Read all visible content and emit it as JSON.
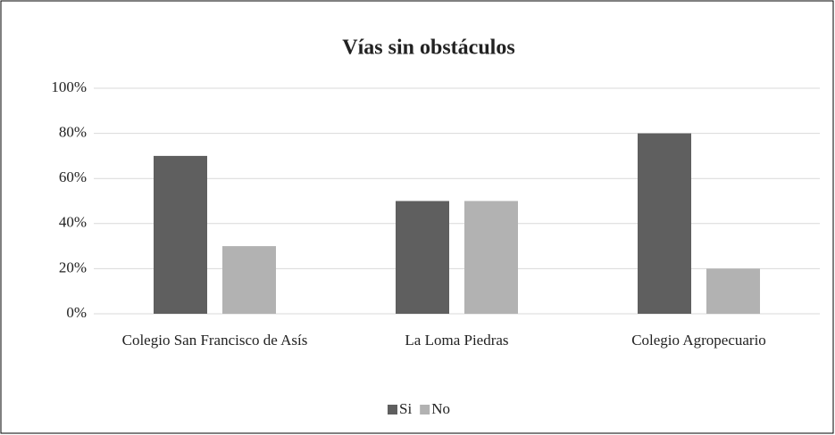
{
  "chart_data": {
    "type": "bar",
    "title": "Vías sin obstáculos",
    "categories": [
      "Colegio San Francisco de Asís",
      "La Loma Piedras",
      "Colegio Agropecuario"
    ],
    "series": [
      {
        "name": "Si",
        "color": "#5f5f5f",
        "values": [
          70,
          50,
          80
        ]
      },
      {
        "name": "No",
        "color": "#b2b2b2",
        "values": [
          30,
          50,
          20
        ]
      }
    ],
    "ylim": [
      0,
      100
    ],
    "yticks": [
      {
        "value": 0,
        "label": "0%"
      },
      {
        "value": 20,
        "label": "20%"
      },
      {
        "value": 40,
        "label": "40%"
      },
      {
        "value": 60,
        "label": "60%"
      },
      {
        "value": 80,
        "label": "80%"
      },
      {
        "value": 100,
        "label": "100%"
      }
    ],
    "grid": true,
    "legend": "bottom"
  }
}
